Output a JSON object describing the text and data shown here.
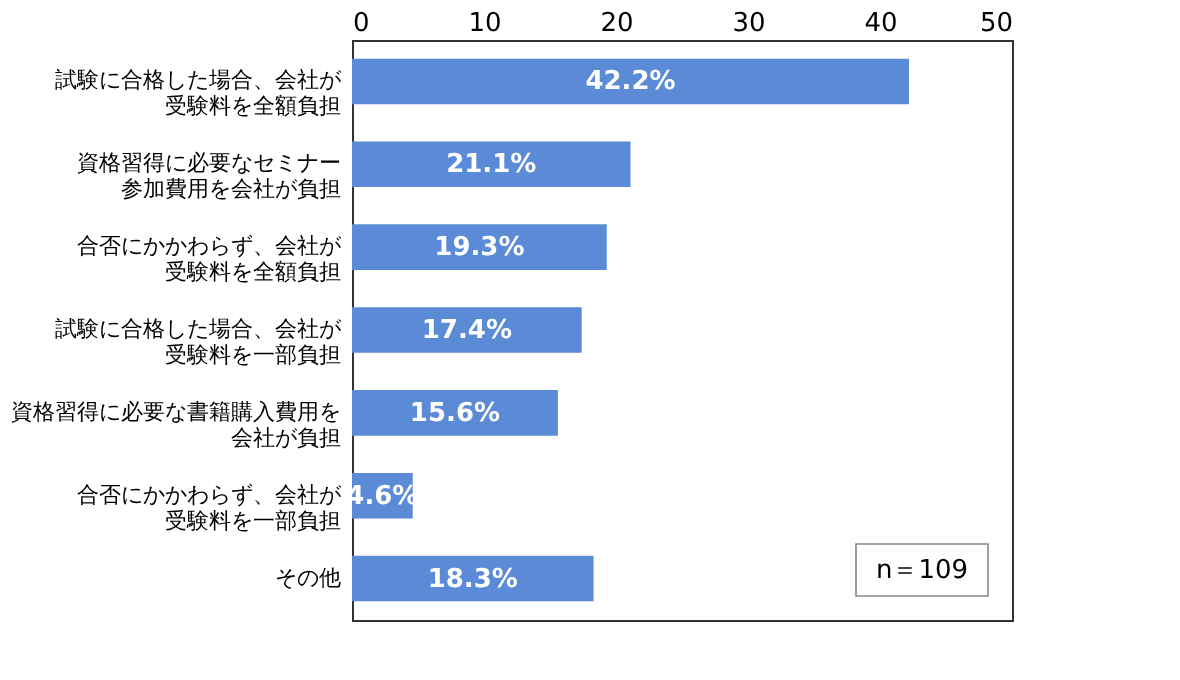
{
  "chart_data": {
    "type": "bar",
    "orientation": "horizontal",
    "categories": [
      "試験に合格した場合、会社が受験料を全額負担",
      "資格習得に必要なセミナー参加費用を会社が負担",
      "合否にかかわらず、会社が受験料を全額負担",
      "試験に合格した場合、会社が受験料を一部負担",
      "資格習得に必要な書籍購入費用を会社が負担",
      "合否にかかわらず、会社が受験料を一部負担",
      "その他"
    ],
    "values": [
      42.2,
      21.1,
      19.3,
      17.4,
      15.6,
      4.6,
      18.3
    ],
    "value_labels": [
      "42.2%",
      "21.1%",
      "19.3%",
      "17.4%",
      "15.6%",
      "4.6%",
      "18.3%"
    ],
    "color": "#5b8ad6",
    "xlim": [
      0,
      50
    ],
    "xticks": [
      0,
      10,
      20,
      30,
      40,
      50
    ],
    "annotations": [
      "n＝109"
    ]
  }
}
